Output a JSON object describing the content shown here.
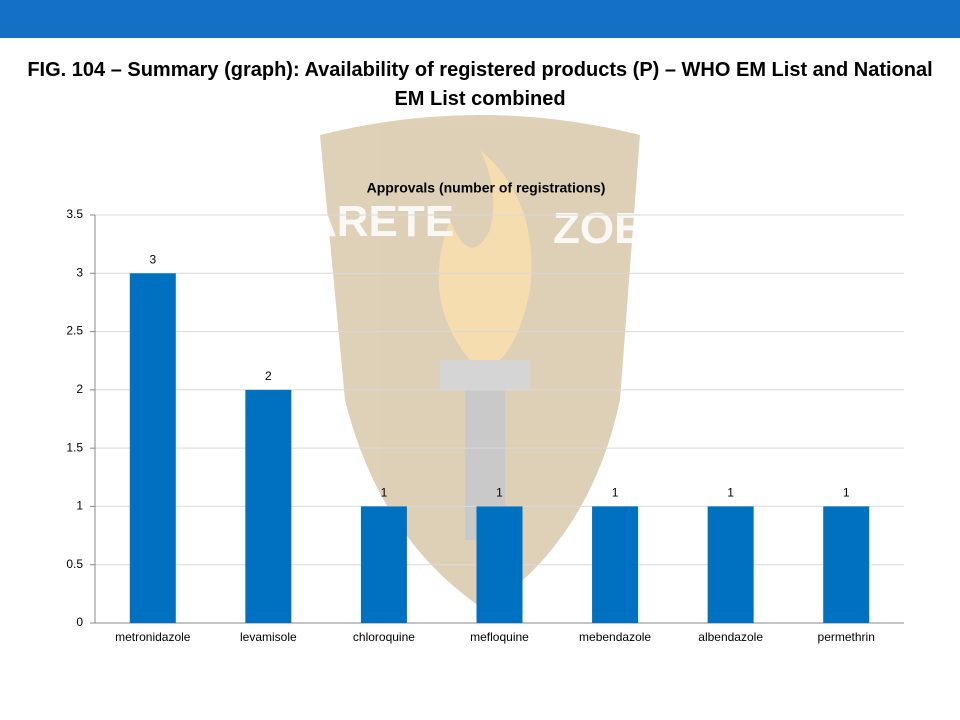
{
  "slide": {
    "title": "FIG. 104 – Summary (graph): Availability of registered products (P) – WHO EM List and National EM List combined",
    "watermark": [
      "ARETE",
      "ZOE"
    ]
  },
  "chart_data": {
    "type": "bar",
    "title": "Approvals (number of registrations)",
    "categories": [
      "metronidazole",
      "levamisole",
      "chloroquine",
      "mefloquine",
      "mebendazole",
      "albendazole",
      "permethrin"
    ],
    "values": [
      3,
      2,
      1,
      1,
      1,
      1,
      1
    ],
    "color": "#0070c0",
    "ylim": [
      0,
      3.5
    ],
    "yticks": [
      0,
      0.5,
      1,
      1.5,
      2,
      2.5,
      3,
      3.5
    ],
    "grid": true
  }
}
